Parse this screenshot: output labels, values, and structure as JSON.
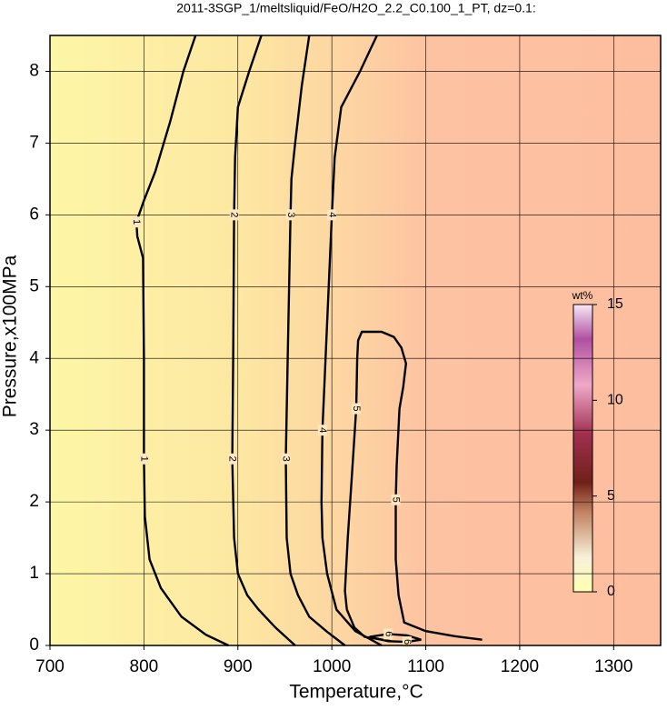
{
  "chart_data": {
    "type": "contour",
    "title": "2011-3SGP_1/meltsliquid/FeO/H2O_2.2_C0.100_1_PT, dz=0.1:",
    "x_label": "Temperature,°C",
    "y_label": "Pressure,x100MPa",
    "xlim": [
      700,
      1350
    ],
    "xticks": [
      700,
      800,
      900,
      1000,
      1100,
      1200,
      1300
    ],
    "ylim": [
      0,
      8.5
    ],
    "yticks": [
      0,
      1,
      2,
      3,
      4,
      5,
      6,
      7,
      8
    ],
    "grid": true,
    "contours": [
      {
        "level": 1,
        "x": [
          855,
          842,
          828,
          812,
          800,
          792,
          793,
          799,
          800,
          800,
          801,
          806,
          818,
          840,
          866,
          890
        ],
        "y": [
          8.5,
          8.0,
          7.3,
          6.6,
          6.2,
          5.9,
          5.7,
          5.4,
          4.0,
          2.6,
          1.8,
          1.2,
          0.8,
          0.4,
          0.15,
          0
        ]
      },
      {
        "level": 2,
        "x": [
          925,
          912,
          900,
          897,
          896,
          895,
          894,
          896,
          900,
          910,
          922,
          940,
          961
        ],
        "y": [
          8.5,
          8.0,
          7.5,
          6.8,
          6.0,
          4.0,
          2.6,
          1.5,
          1.0,
          0.7,
          0.5,
          0.25,
          0
        ]
      },
      {
        "level": 3,
        "x": [
          976,
          968,
          961,
          957,
          956,
          953,
          951,
          952,
          956,
          964,
          976,
          994,
          1014
        ],
        "y": [
          8.5,
          7.8,
          7.0,
          6.5,
          6.0,
          4.0,
          2.6,
          1.5,
          1.0,
          0.7,
          0.4,
          0.2,
          0
        ]
      },
      {
        "level": 4,
        "x": [
          1048,
          1030,
          1010,
          1003,
          1000,
          995,
          990,
          989,
          990,
          995,
          1005,
          1025,
          1053
        ],
        "y": [
          8.5,
          8.0,
          7.5,
          6.8,
          6.0,
          4.5,
          3.0,
          2.0,
          1.5,
          1.0,
          0.5,
          0.2,
          0
        ]
      },
      {
        "level": 5,
        "x": [
          1063,
          1035,
          1024,
          1016,
          1014,
          1017,
          1021,
          1026,
          1027,
          1028,
          1032,
          1053,
          1066,
          1074,
          1079,
          1076,
          1072,
          1069,
          1068,
          1068,
          1071,
          1077,
          1100,
          1130,
          1160
        ],
        "y": [
          0.06,
          0.12,
          0.25,
          0.5,
          0.76,
          1.5,
          2.3,
          3.3,
          4.0,
          4.25,
          4.37,
          4.37,
          4.3,
          4.15,
          3.93,
          3.6,
          3.3,
          2.5,
          2.03,
          1.2,
          0.7,
          0.32,
          0.2,
          0.13,
          0.08
        ]
      },
      {
        "level": 6,
        "x": [
          1040,
          1060,
          1080,
          1095,
          1080,
          1060,
          1040
        ],
        "y": [
          0.12,
          0.16,
          0.14,
          0.08,
          0.05,
          0.06,
          0.12
        ]
      }
    ],
    "colorbar": {
      "label": "wt%",
      "lim": [
        0,
        15
      ],
      "ticks": [
        0,
        5,
        10,
        15
      ]
    }
  }
}
